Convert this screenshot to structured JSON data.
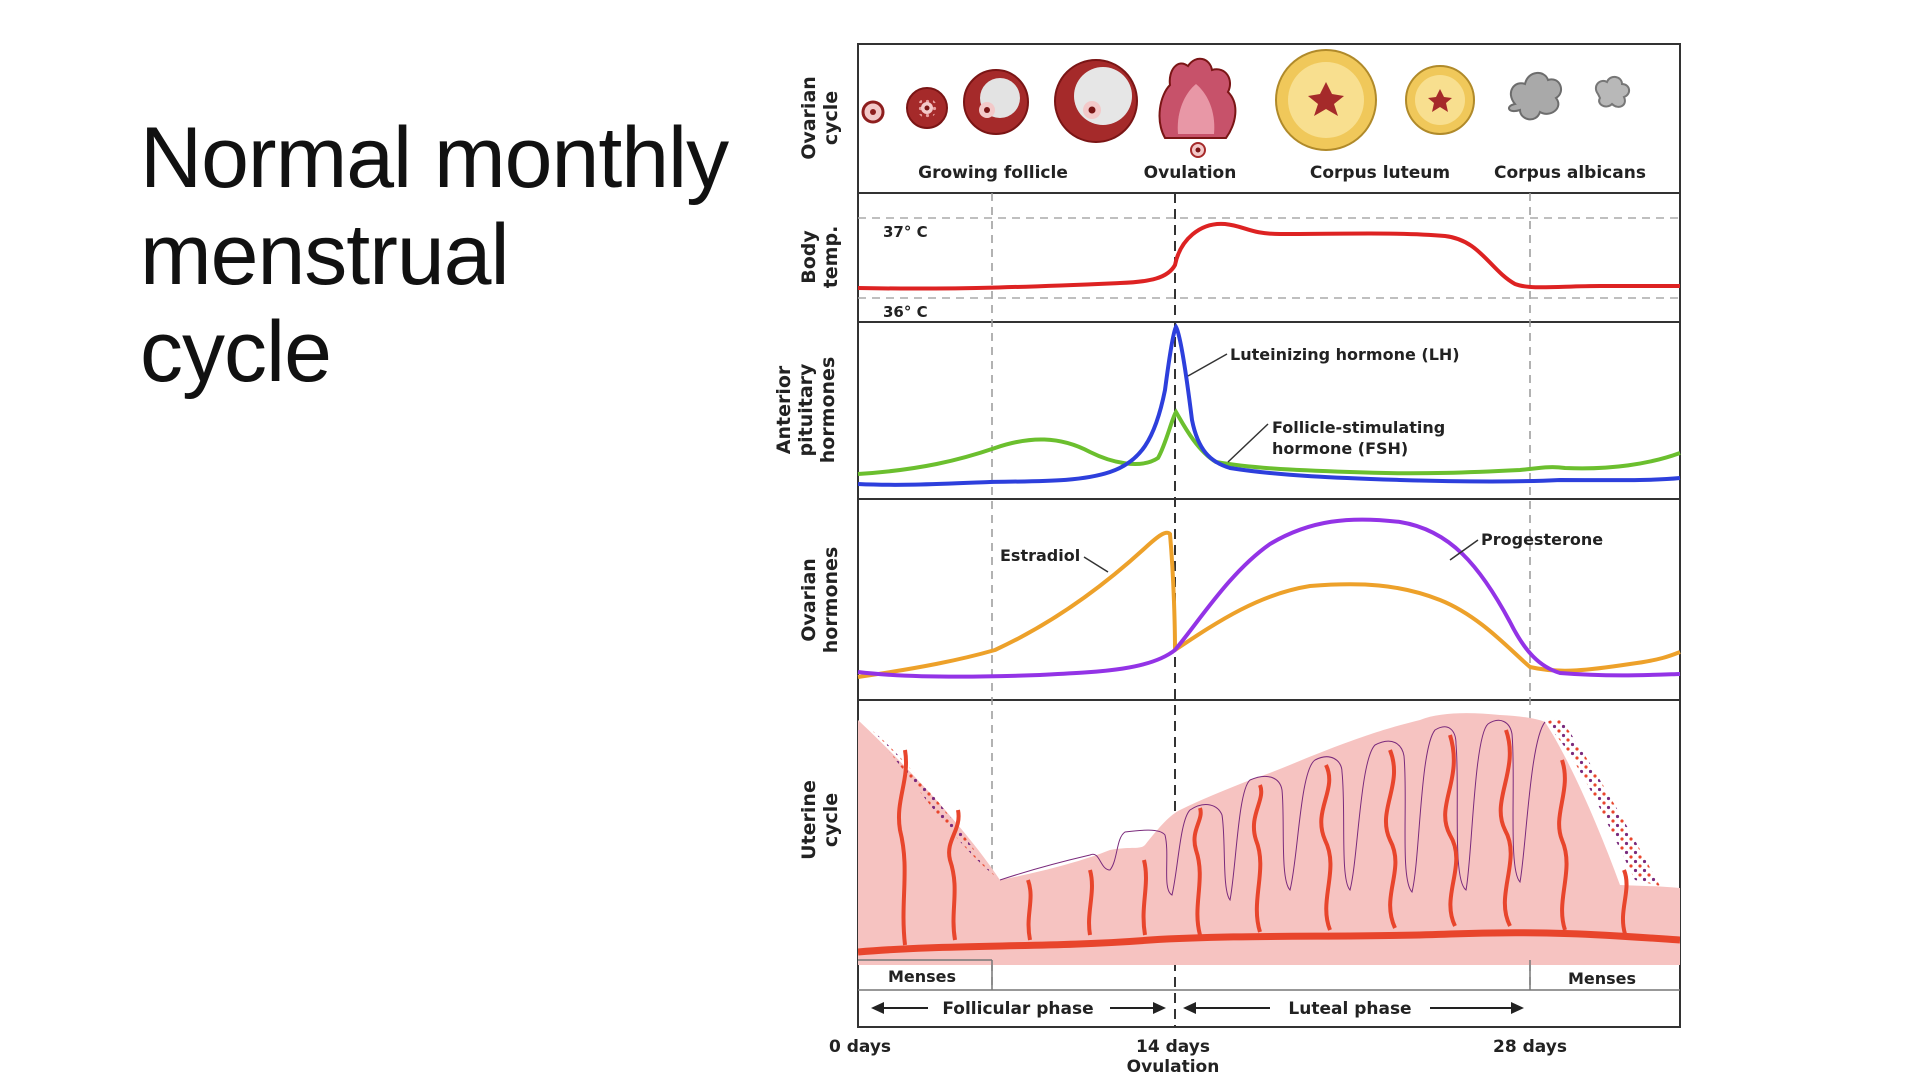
{
  "slide": {
    "title_lines": [
      "Normal monthly",
      "menstrual",
      "cycle"
    ]
  },
  "colors": {
    "temperature": "#dd2222",
    "lh": "#2d3fdc",
    "fsh": "#6bbf2e",
    "estradiol": "#eda12a",
    "progesterone": "#9333e6",
    "endometrium": "#f6c3c1",
    "vessel": "#e8452c",
    "outline": "#7a2a7c",
    "follicle_dark": "#8e1e1e",
    "luteum_yellow": "#f5d57a",
    "albicans_gray": "#a9a9a9"
  },
  "diagram": {
    "panels": {
      "ovarian": [
        "Ovarian",
        "cycle"
      ],
      "temp": [
        "Body",
        "temp."
      ],
      "pituitary": [
        "Anterior",
        "pituitary",
        "hormones"
      ],
      "ovarian_hormones": [
        "Ovarian",
        "hormones"
      ],
      "uterine": [
        "Uterine",
        "cycle"
      ]
    },
    "ovarian_stages": [
      "Growing follicle",
      "Ovulation",
      "Corpus luteum",
      "Corpus albicans"
    ],
    "temp_marks": [
      "37° C",
      "36° C"
    ],
    "hormone_labels": {
      "lh": "Luteinizing hormone (LH)",
      "fsh": [
        "Follicle-stimulating",
        "hormone (FSH)"
      ],
      "estradiol": "Estradiol",
      "progesterone": "Progesterone"
    },
    "menses": [
      "Menses",
      "Menses"
    ],
    "phases": [
      "Follicular phase",
      "Luteal phase"
    ],
    "days": [
      "0 days",
      "14 days",
      "28 days"
    ],
    "ovulation_label": "Ovulation"
  }
}
